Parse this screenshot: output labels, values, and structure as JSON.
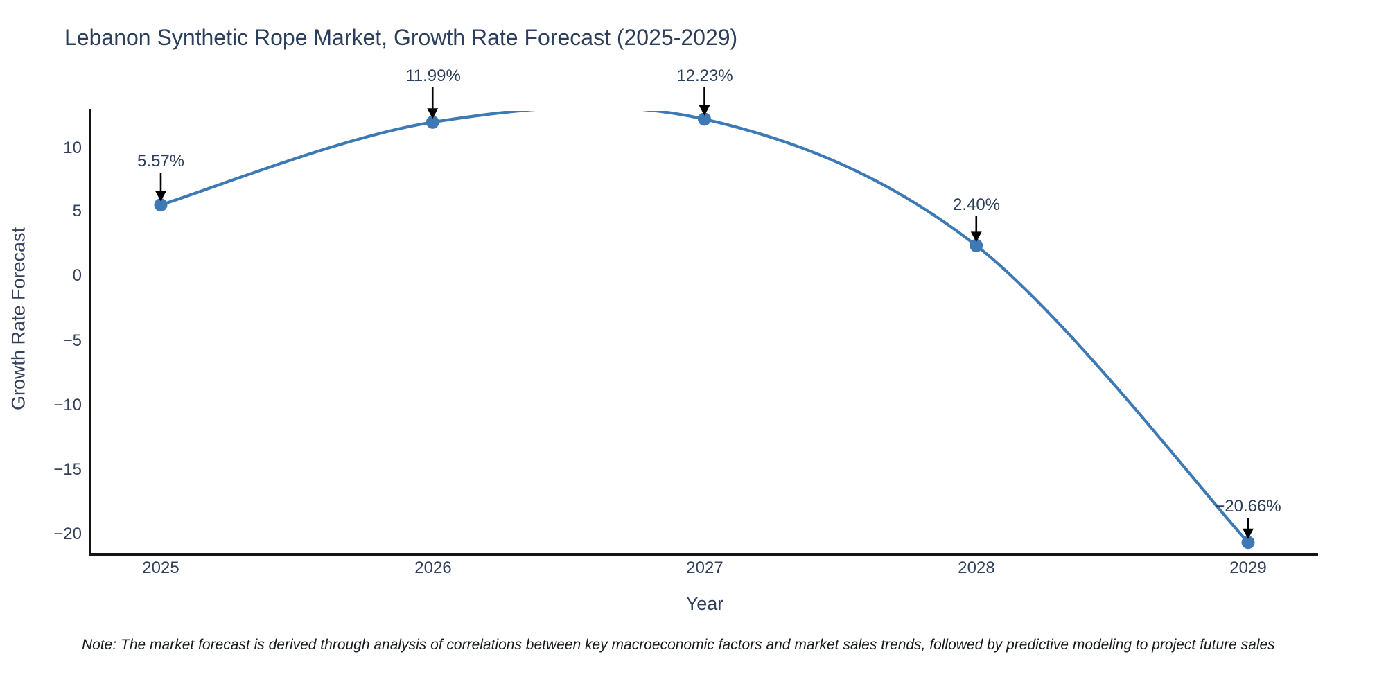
{
  "chart_data": {
    "type": "line",
    "line_shape": "spline",
    "title": "Lebanon Synthetic Rope Market, Growth Rate Forecast (2025-2029)",
    "xlabel": "Year",
    "ylabel": "Growth Rate Forecast",
    "x": [
      2025,
      2026,
      2027,
      2028,
      2029
    ],
    "y": [
      5.57,
      11.99,
      12.23,
      2.4,
      -20.66
    ],
    "point_labels": [
      "5.57%",
      "11.99%",
      "12.23%",
      "2.40%",
      "−20.66%"
    ],
    "xticks": [
      "2025",
      "2026",
      "2027",
      "2028",
      "2029"
    ],
    "yticks": [
      "10",
      "5",
      "0",
      "−5",
      "−10",
      "−15",
      "−20"
    ],
    "ytick_values": [
      10,
      5,
      0,
      -5,
      -10,
      -15,
      -20
    ],
    "xlim": [
      2024.74,
      2029.25
    ],
    "ylim": [
      -21.6,
      12.9
    ],
    "grid": false,
    "legend": "none",
    "line_color": "#3d7ab5",
    "marker_color": "#3d7ab5",
    "axis_color": "#141414",
    "text_color": "#2b3f5c",
    "annotation_arrow_color": "#000000",
    "annotation_note": "black arrows point from each percentage label down to its data point; spline is clipped at the plot top between 2026 and 2027"
  },
  "footnote": {
    "text": "Note: The market forecast is derived through analysis of correlations between key macroeconomic factors and market sales trends, followed by predictive modeling to project future sales"
  }
}
